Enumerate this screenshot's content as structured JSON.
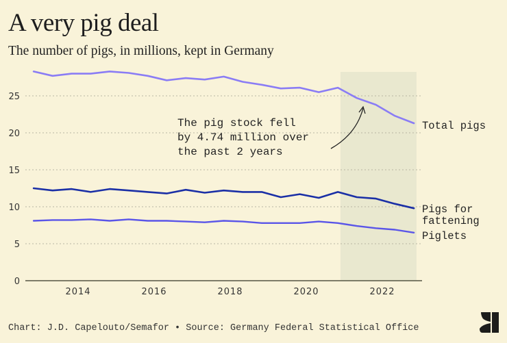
{
  "header": {
    "title": "A very pig deal",
    "subtitle": "The number of pigs, in millions, kept in Germany"
  },
  "footer": {
    "credit": "Chart: J.D. Capelouto/Semafor • Source: Germany Federal Statistical Office",
    "logo_icon": "semafor-logo-icon"
  },
  "colors": {
    "background": "#f9f3d9",
    "highlight_band": "#e9e8cf",
    "total_pigs": "#8a7cf5",
    "pigs_for_fattening": "#1a2fa6",
    "piglets": "#5a55e8",
    "gridline": "#b8b5a2",
    "axis": "#555544"
  },
  "chart_data": {
    "type": "line",
    "title": "A very pig deal",
    "subtitle": "The number of pigs, in millions, kept in Germany",
    "xlabel": "",
    "ylabel": "",
    "x": [
      2012.83,
      2013.33,
      2013.83,
      2014.33,
      2014.83,
      2015.33,
      2015.83,
      2016.33,
      2016.83,
      2017.33,
      2017.83,
      2018.33,
      2018.83,
      2019.33,
      2019.83,
      2020.33,
      2020.83,
      2021.33,
      2021.83,
      2022.33,
      2022.83
    ],
    "xlim": [
      2012.6,
      2023.05
    ],
    "ylim": [
      0,
      28.2
    ],
    "xticks": [
      2014,
      2016,
      2018,
      2020,
      2022
    ],
    "xtick_labels": [
      "2014",
      "2016",
      "2018",
      "2020",
      "2022"
    ],
    "yticks": [
      0,
      5,
      10,
      15,
      20,
      25
    ],
    "ytick_labels": [
      "0",
      "5",
      "10",
      "15",
      "20",
      "25"
    ],
    "grid": "horizontal dotted",
    "series": [
      {
        "name": "Total pigs",
        "label": "Total pigs",
        "values": [
          28.3,
          27.7,
          28.0,
          28.0,
          28.3,
          28.1,
          27.7,
          27.1,
          27.4,
          27.2,
          27.6,
          26.9,
          26.5,
          26.0,
          26.1,
          25.5,
          26.1,
          24.7,
          23.8,
          22.3,
          21.3
        ]
      },
      {
        "name": "Pigs for fattening",
        "label": "Pigs for\nfattening",
        "values": [
          12.5,
          12.2,
          12.4,
          12.0,
          12.4,
          12.2,
          12.0,
          11.8,
          12.3,
          11.9,
          12.2,
          12.0,
          12.0,
          11.3,
          11.7,
          11.2,
          12.0,
          11.3,
          11.1,
          10.4,
          9.8
        ]
      },
      {
        "name": "Piglets",
        "label": "Piglets",
        "values": [
          8.1,
          8.2,
          8.2,
          8.3,
          8.1,
          8.3,
          8.1,
          8.1,
          8.0,
          7.9,
          8.1,
          8.0,
          7.8,
          7.8,
          7.8,
          8.0,
          7.8,
          7.4,
          7.1,
          6.9,
          6.5
        ]
      }
    ],
    "highlight_band": {
      "x_from": 2020.9,
      "x_to": 2022.9,
      "meaning": "past 2 years"
    },
    "annotations": [
      {
        "text_lines": [
          "The pig stock fell",
          "by 4.74 million over",
          "the past 2 years"
        ],
        "arrow_to_x": 2021.33,
        "arrow_to_series": "Total pigs"
      }
    ],
    "legend": "direct labels at right end of lines"
  }
}
